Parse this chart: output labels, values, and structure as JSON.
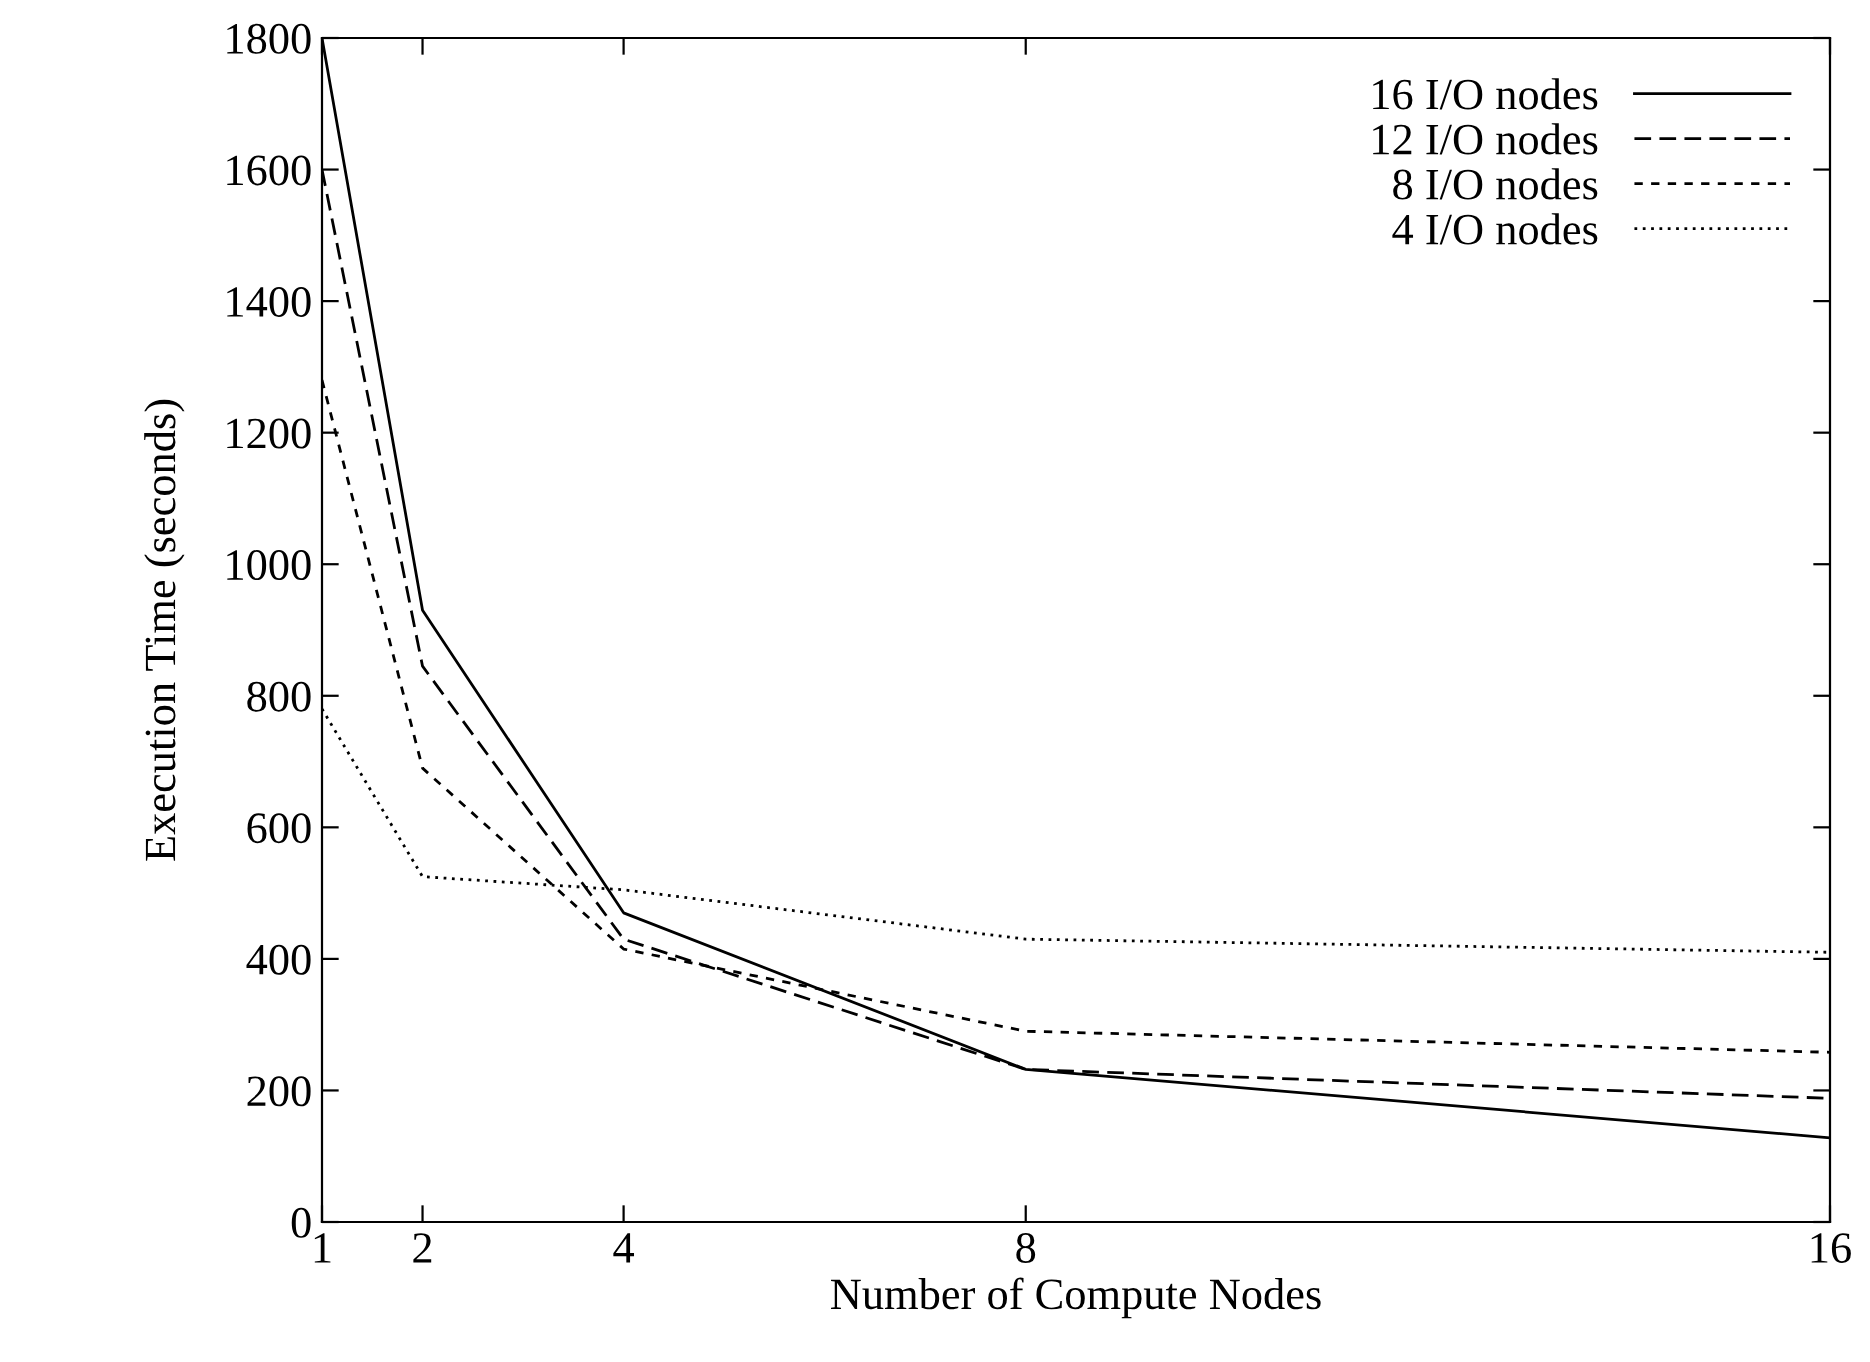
{
  "chart_data": {
    "type": "line",
    "xlabel": "Number of Compute Nodes",
    "ylabel": "Execution Time (seconds)",
    "x": [
      1,
      2,
      4,
      8,
      16
    ],
    "series": [
      {
        "name": "16 I/O nodes",
        "color": "#000000",
        "line_style": "solid",
        "values": [
          1800,
          930,
          470,
          232,
          128
        ]
      },
      {
        "name": "12 I/O nodes",
        "color": "#000000",
        "line_style": "dashed",
        "values": [
          1600,
          845,
          430,
          232,
          188
        ]
      },
      {
        "name": "8 I/O nodes",
        "color": "#000000",
        "line_style": "dashed",
        "values": [
          1280,
          690,
          415,
          290,
          258
        ]
      },
      {
        "name": "4 I/O nodes",
        "color": "#000000",
        "line_style": "dotted",
        "values": [
          780,
          525,
          505,
          430,
          410
        ]
      }
    ],
    "xlim": [
      1,
      16
    ],
    "xticks": [
      1,
      2,
      4,
      8,
      16
    ],
    "ylim": [
      0,
      1800
    ],
    "yticks": [
      0,
      200,
      400,
      600,
      800,
      1000,
      1200,
      1400,
      1600,
      1800
    ],
    "grid": false,
    "legend": "top right",
    "marker": "none"
  }
}
